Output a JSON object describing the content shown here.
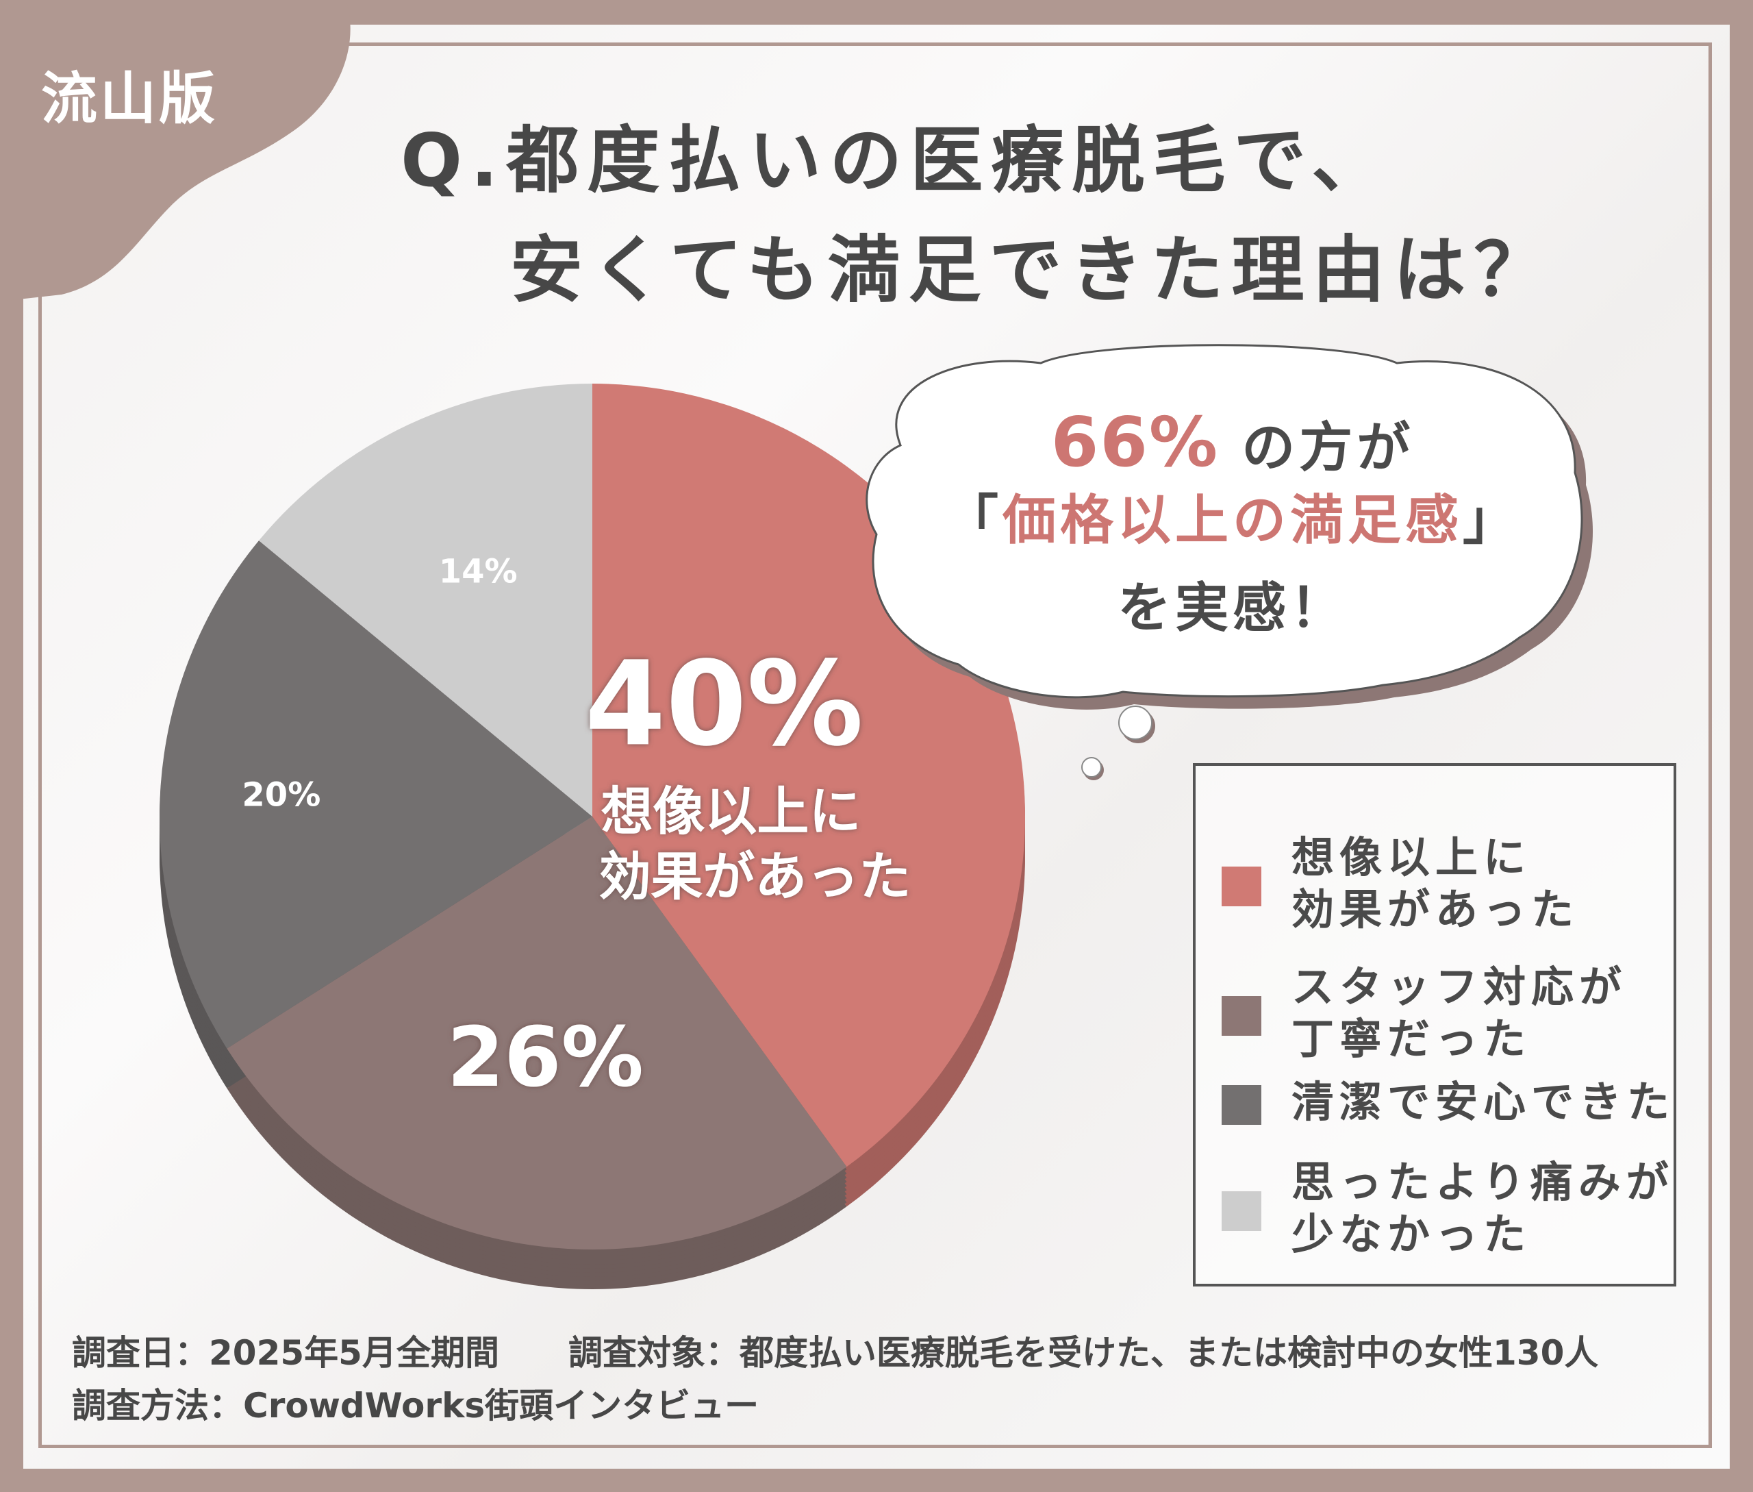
{
  "badge": "流山版",
  "title": {
    "line1": "Q.都度払いの医療脱毛で、",
    "line2": "安くても満足できた理由は？"
  },
  "callout": {
    "percent": "66%",
    "line1_suffix": "の方が",
    "line2_open": "「",
    "line2_highlight": "価格以上の満足感",
    "line2_close": "」",
    "line3": "を実感！"
  },
  "colors": {
    "accent": "#cd7672",
    "frame": "#b09891",
    "text": "#474747"
  },
  "chart_data": {
    "type": "pie",
    "slices": [
      {
        "label": "想像以上に\n効果があった",
        "value": 40,
        "display": "40%",
        "color": "#d07a74"
      },
      {
        "label": "スタッフ対応が\n丁寧だった",
        "value": 26,
        "display": "26%",
        "color": "#8d7775"
      },
      {
        "label": "清潔で安心できた",
        "value": 20,
        "display": "20%",
        "color": "#737070"
      },
      {
        "label": "思ったより痛みが\n少なかった",
        "value": 14,
        "display": "14%",
        "color": "#cdcdcd"
      }
    ],
    "inner_label": {
      "line1": "想像以上に",
      "line2": "効果があった"
    },
    "legend_position": "right"
  },
  "footer": {
    "date": "調査日：2025年5月全期間",
    "target": "調査対象：都度払い医療脱毛を受けた、または検討中の女性130人",
    "method": "調査方法：CrowdWorks街頭インタビュー"
  }
}
